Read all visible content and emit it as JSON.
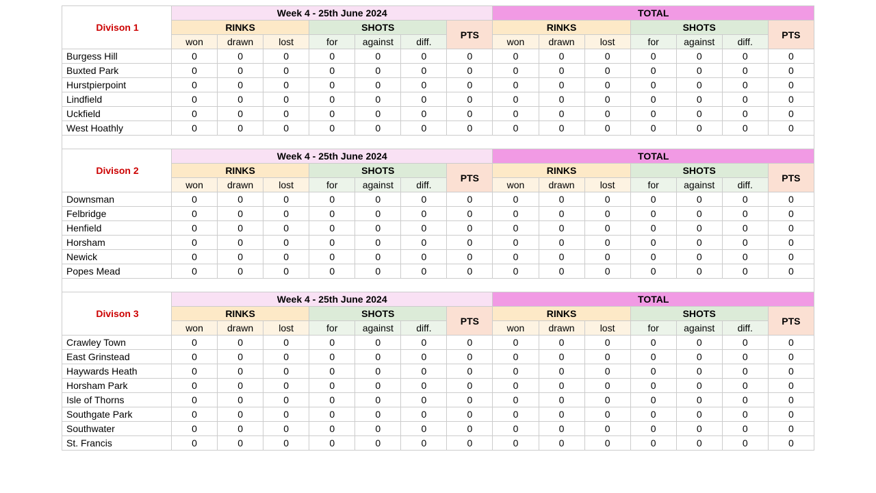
{
  "colors": {
    "week_bg": "#f9e1f4",
    "total_bg": "#f19ae4",
    "rinks_bg": "#fde9c7",
    "shots_bg": "#dcebd8",
    "pts_bg": "#fbe0d3",
    "sub_rinks_bg": "#fdf3e2",
    "sub_shots_bg": "#ecf4ea",
    "division_color": "#cc0000",
    "border": "#cccccc"
  },
  "headers": {
    "week": "Week 4 - 25th June 2024",
    "total": "TOTAL",
    "rinks": "RINKS",
    "shots": "SHOTS",
    "pts": "PTS",
    "won": "won",
    "drawn": "drawn",
    "lost": "lost",
    "for": "for",
    "against": "against",
    "diff": "diff."
  },
  "divisions": [
    {
      "title": "Divison 1",
      "teams": [
        "Burgess Hill",
        "Buxted Park",
        "Hurstpierpoint",
        "Lindfield",
        "Uckfield",
        "West Hoathly"
      ]
    },
    {
      "title": "Divison 2",
      "teams": [
        "Downsman",
        "Felbridge",
        "Henfield",
        "Horsham",
        "Newick",
        "Popes Mead"
      ]
    },
    {
      "title": "Divison 3",
      "teams": [
        "Crawley Town",
        "East Grinstead",
        "Haywards Heath",
        "Horsham Park",
        "Isle of Thorns",
        "Southgate Park",
        "Southwater",
        "St. Francis"
      ]
    }
  ],
  "zero": "0"
}
